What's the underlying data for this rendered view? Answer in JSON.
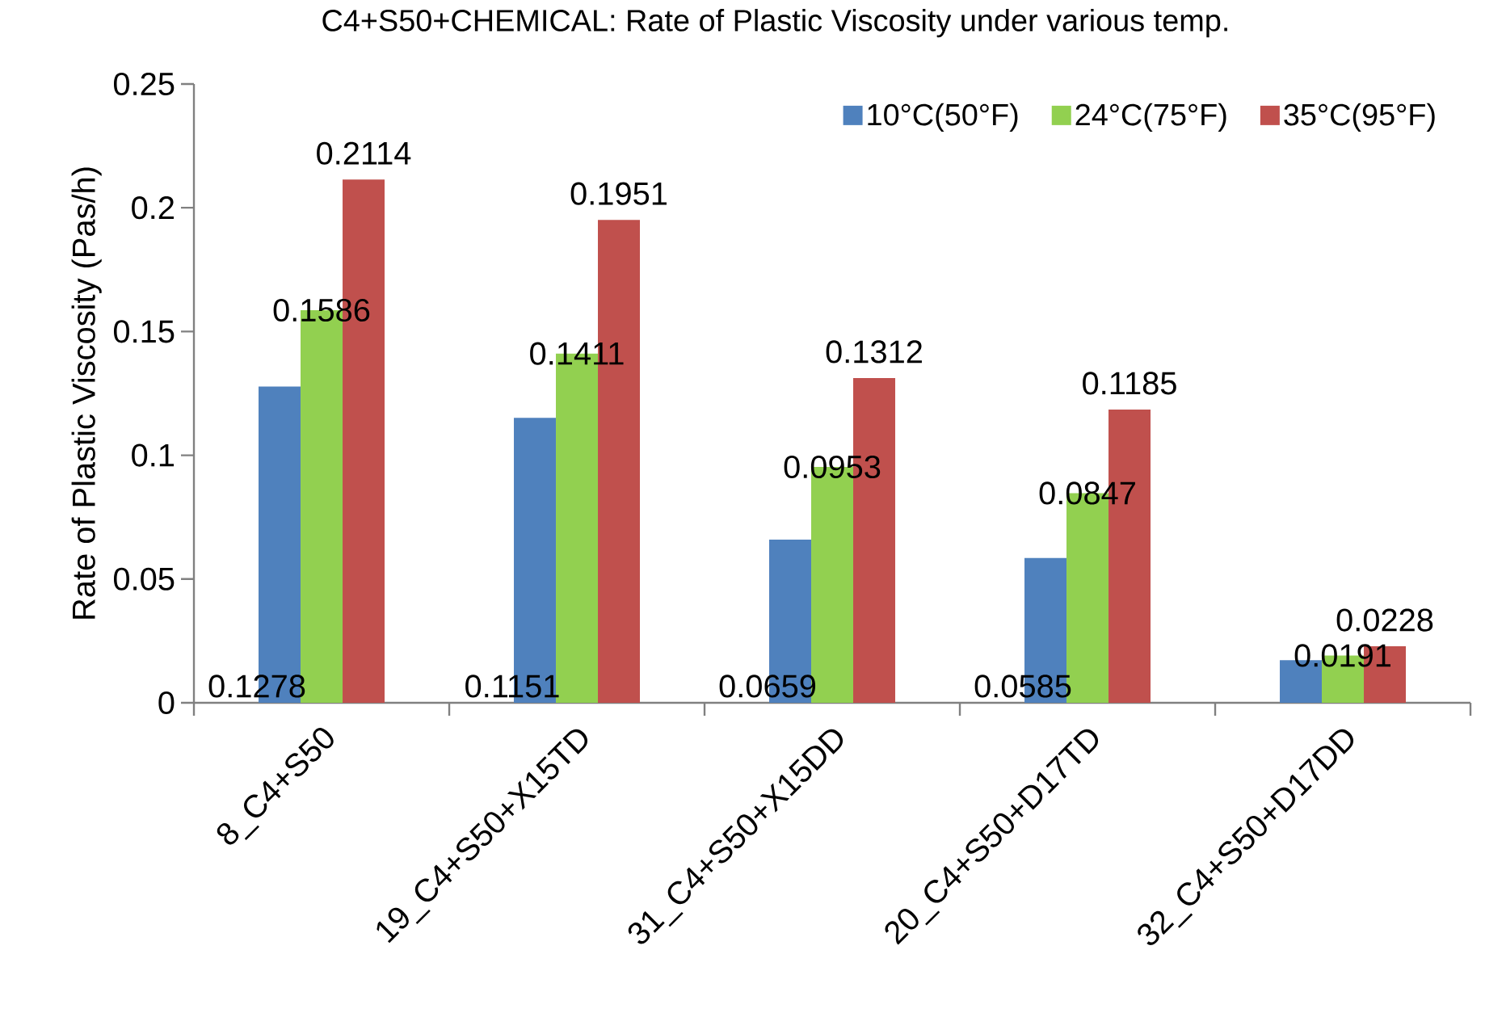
{
  "chart_data": {
    "type": "bar",
    "title": "C4+S50+CHEMICAL: Rate of Plastic Viscosity under various temp.",
    "ylabel": "Rate of Plastic Viscosity (Pas/h)",
    "categories": [
      "8_C4+S50",
      "19_C4+S50+X15TD",
      "31_C4+S50+X15DD",
      "20_C4+S50+D17TD",
      "32_C4+S50+D17DD"
    ],
    "series": [
      {
        "name": "10°C(50°F)",
        "color": "#4f81bd",
        "values": [
          0.1278,
          0.1151,
          0.0659,
          0.0585,
          0.0172
        ],
        "value_labels": [
          "0.1278",
          "0.1151",
          "0.0659",
          "0.0585",
          null
        ]
      },
      {
        "name": "24°C(75°F)",
        "color": "#92d050",
        "values": [
          0.1586,
          0.1411,
          0.0953,
          0.0847,
          0.0191
        ],
        "value_labels": [
          "0.1586",
          "0.1411",
          "0.0953",
          "0.0847",
          "0.0191"
        ]
      },
      {
        "name": "35°C(95°F)",
        "color": "#c0504d",
        "values": [
          0.2114,
          0.1951,
          0.1312,
          0.1185,
          0.0228
        ],
        "value_labels": [
          "0.2114",
          "0.1951",
          "0.1312",
          "0.1185",
          "0.0228"
        ]
      }
    ],
    "ylim": [
      0,
      0.25
    ],
    "yticks": [
      0,
      0.05,
      0.1,
      0.15,
      0.2,
      0.25
    ],
    "grid": false,
    "legend": "top right"
  }
}
